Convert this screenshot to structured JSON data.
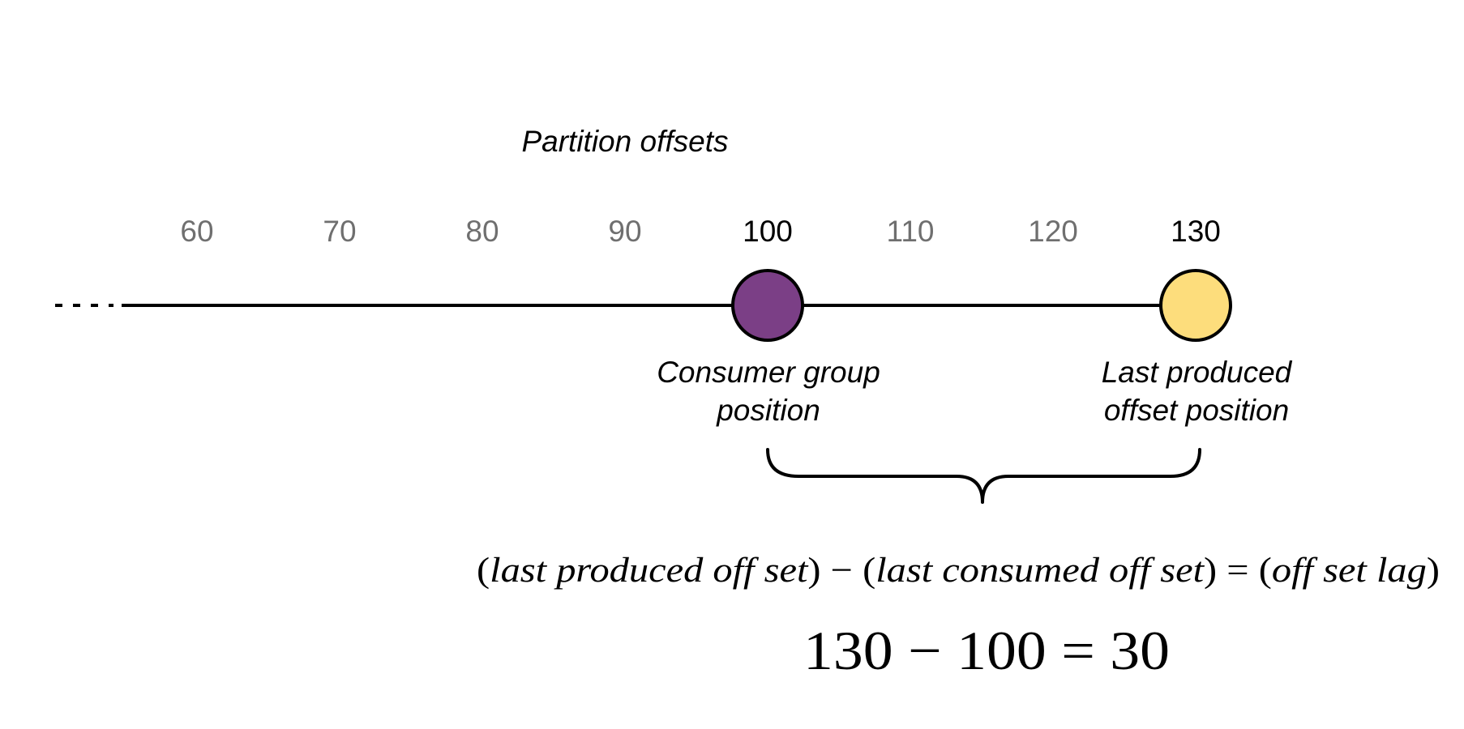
{
  "title": "Partition offsets",
  "ticks": [
    {
      "value": "60",
      "color": "#6f6f6f"
    },
    {
      "value": "70",
      "color": "#6f6f6f"
    },
    {
      "value": "80",
      "color": "#6f6f6f"
    },
    {
      "value": "90",
      "color": "#6f6f6f"
    },
    {
      "value": "100",
      "color": "#000000"
    },
    {
      "value": "110",
      "color": "#6f6f6f"
    },
    {
      "value": "120",
      "color": "#6f6f6f"
    },
    {
      "value": "130",
      "color": "#000000"
    }
  ],
  "markers": {
    "consumer": {
      "offset": 100,
      "fill": "#7b3f86",
      "label_line1": "Consumer group",
      "label_line2": "position"
    },
    "producer": {
      "offset": 130,
      "fill": "#fddd7c",
      "label_line1": "Last produced",
      "label_line2": "offset position"
    }
  },
  "formula": {
    "open_paren_1": "(",
    "term_1": "last produced off set",
    "close_paren_1": ")",
    "minus": " − ",
    "open_paren_2": "(",
    "term_2": "last consumed off set",
    "close_paren_2": ")",
    "equals": " = ",
    "open_paren_3": "(",
    "term_3": "off set lag",
    "close_paren_3": ")"
  },
  "result": "130 − 100 = 30"
}
